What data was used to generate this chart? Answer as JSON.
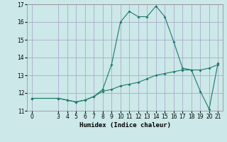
{
  "xlabel": "Humidex (Indice chaleur)",
  "background_color": "#cce8e8",
  "grid_color": "#aaaacc",
  "line_color": "#1a7a6a",
  "xlim": [
    -0.5,
    21.5
  ],
  "ylim": [
    11,
    17
  ],
  "xticks": [
    0,
    3,
    4,
    5,
    6,
    7,
    8,
    9,
    10,
    11,
    12,
    13,
    14,
    15,
    16,
    17,
    18,
    19,
    20,
    21
  ],
  "yticks": [
    11,
    12,
    13,
    14,
    15,
    16,
    17
  ],
  "series1_x": [
    0,
    3,
    4,
    5,
    6,
    7,
    8,
    9,
    10,
    11,
    12,
    13,
    14,
    15,
    16,
    17,
    18,
    19,
    20,
    21
  ],
  "series1_y": [
    11.7,
    11.7,
    11.6,
    11.5,
    11.6,
    11.8,
    12.2,
    13.6,
    16.0,
    16.6,
    16.3,
    16.3,
    16.9,
    16.3,
    14.9,
    13.4,
    13.3,
    12.1,
    11.1,
    13.7
  ],
  "series2_x": [
    0,
    3,
    4,
    5,
    6,
    7,
    8,
    9,
    10,
    11,
    12,
    13,
    14,
    15,
    16,
    17,
    18,
    19,
    20,
    21
  ],
  "series2_y": [
    11.7,
    11.7,
    11.6,
    11.5,
    11.6,
    11.8,
    12.1,
    12.2,
    12.4,
    12.5,
    12.6,
    12.8,
    13.0,
    13.1,
    13.2,
    13.3,
    13.3,
    13.3,
    13.4,
    13.6
  ]
}
